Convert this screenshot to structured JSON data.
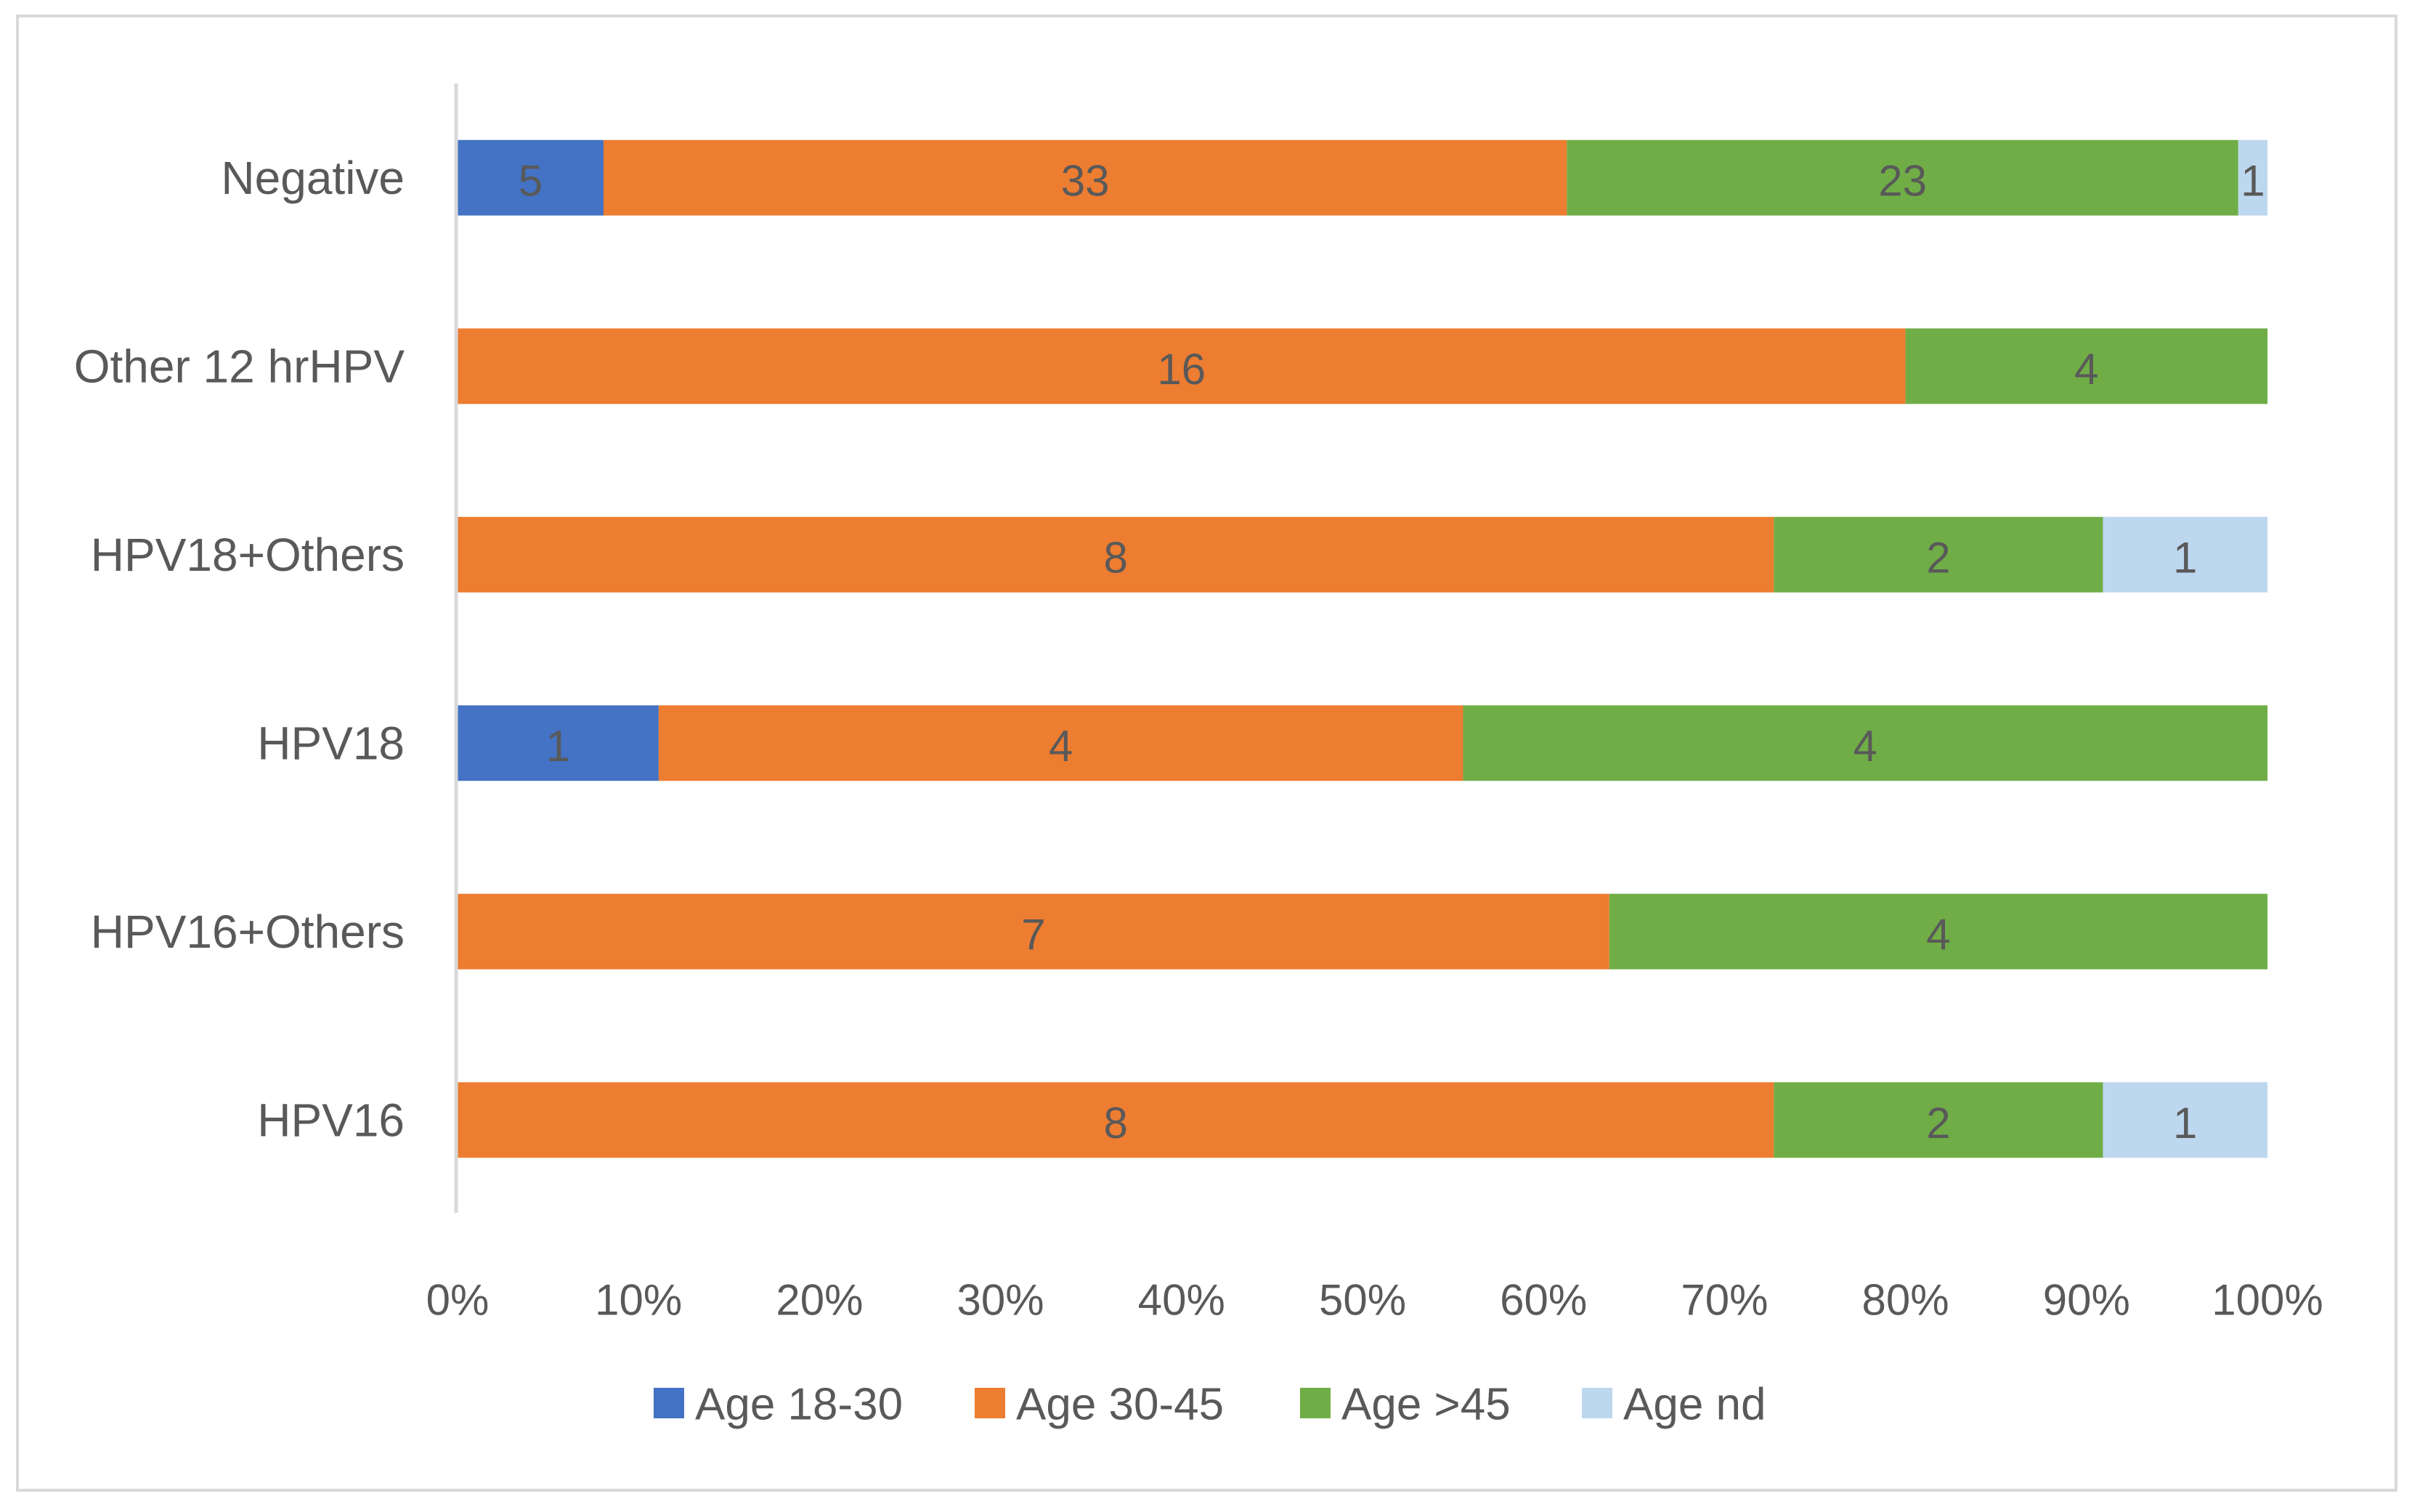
{
  "chart_data": {
    "type": "bar",
    "orientation": "horizontal",
    "stacking": "percent",
    "categories": [
      "Negative",
      "Other 12 hrHPV",
      "HPV18+Others",
      "HPV18",
      "HPV16+Others",
      "HPV16"
    ],
    "series": [
      {
        "name": "Age 18-30",
        "color": "#4472c4",
        "values": [
          5,
          0,
          0,
          1,
          0,
          0
        ]
      },
      {
        "name": "Age 30-45",
        "color": "#ed7d31",
        "values": [
          33,
          16,
          8,
          4,
          7,
          8
        ]
      },
      {
        "name": "Age >45",
        "color": "#70ad47",
        "values": [
          23,
          4,
          2,
          4,
          4,
          2
        ]
      },
      {
        "name": "Age nd",
        "color": "#bdd7ee",
        "values": [
          1,
          0,
          1,
          0,
          0,
          1
        ]
      }
    ],
    "xlim": [
      0,
      100
    ],
    "x_ticks": [
      "0%",
      "10%",
      "20%",
      "30%",
      "40%",
      "50%",
      "60%",
      "70%",
      "80%",
      "90%",
      "100%"
    ],
    "title": "",
    "xlabel": "",
    "ylabel": "",
    "grid": false,
    "legend_position": "bottom"
  }
}
